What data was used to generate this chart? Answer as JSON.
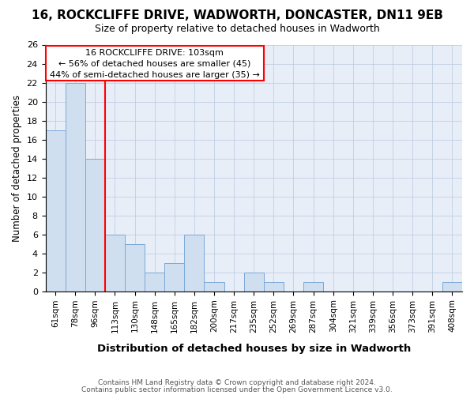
{
  "title": "16, ROCKCLIFFE DRIVE, WADWORTH, DONCASTER, DN11 9EB",
  "subtitle": "Size of property relative to detached houses in Wadworth",
  "xlabel": "Distribution of detached houses by size in Wadworth",
  "ylabel": "Number of detached properties",
  "categories": [
    "61sqm",
    "78sqm",
    "96sqm",
    "113sqm",
    "130sqm",
    "148sqm",
    "165sqm",
    "182sqm",
    "200sqm",
    "217sqm",
    "235sqm",
    "252sqm",
    "269sqm",
    "287sqm",
    "304sqm",
    "321sqm",
    "339sqm",
    "356sqm",
    "373sqm",
    "391sqm",
    "408sqm"
  ],
  "values": [
    17,
    22,
    14,
    6,
    5,
    2,
    3,
    6,
    1,
    0,
    2,
    1,
    0,
    1,
    0,
    0,
    0,
    0,
    0,
    0,
    1
  ],
  "bar_color": "#d0dff0",
  "bar_edge_color": "#7aa8d8",
  "ylim": [
    0,
    26
  ],
  "yticks": [
    0,
    2,
    4,
    6,
    8,
    10,
    12,
    14,
    16,
    18,
    20,
    22,
    24,
    26
  ],
  "red_line_x": 1.58,
  "annotation_title": "16 ROCKCLIFFE DRIVE: 103sqm",
  "annotation_line1": "← 56% of detached houses are smaller (45)",
  "annotation_line2": "44% of semi-detached houses are larger (35) →",
  "footnote1": "Contains HM Land Registry data © Crown copyright and database right 2024.",
  "footnote2": "Contains public sector information licensed under the Open Government Licence v3.0.",
  "grid_color": "#b8c8e0",
  "background_color": "#e8eef8",
  "title_fontsize": 11,
  "subtitle_fontsize": 9
}
